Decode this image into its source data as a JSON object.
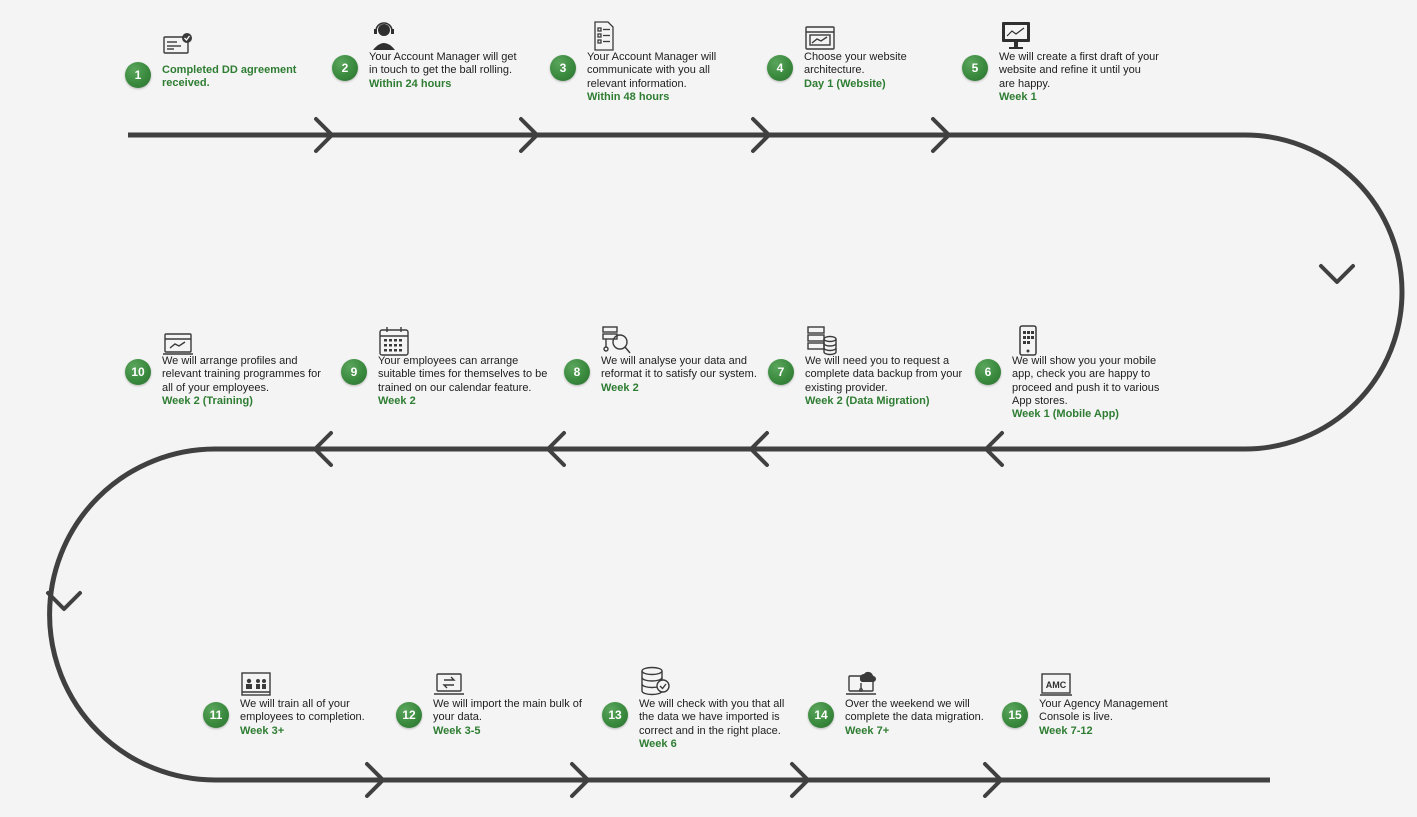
{
  "accent_color": "#2e7d32",
  "path_color": "#404040",
  "steps": [
    {
      "number": "1",
      "description": "Completed DD agreement received.",
      "timing": "",
      "icon": "agreement-card-icon"
    },
    {
      "number": "2",
      "description": "Your Account Manager will get in touch to get the ball rolling.",
      "timing": "Within 24 hours",
      "icon": "account-manager-headset-icon"
    },
    {
      "number": "3",
      "description": "Your Account Manager will communicate with you all relevant information.",
      "timing": "Within 48 hours",
      "icon": "checklist-document-icon"
    },
    {
      "number": "4",
      "description": "Choose your website architecture.",
      "timing": "Day 1 (Website)",
      "icon": "website-browser-icon"
    },
    {
      "number": "5",
      "description": "We will create a first draft of your website and refine it until you are happy.",
      "timing": "Week 1",
      "icon": "desktop-monitor-icon"
    },
    {
      "number": "6",
      "description": "We will show you your mobile app, check you are happy to proceed and push it to various App stores.",
      "timing": "Week 1 (Mobile App)",
      "icon": "mobile-phone-icon"
    },
    {
      "number": "7",
      "description": "We will need you to request a complete data backup from your existing provider.",
      "timing": "Week 2 (Data Migration)",
      "icon": "server-database-icon"
    },
    {
      "number": "8",
      "description": "We will analyse your data and reformat it to satisfy our system.",
      "timing": "Week 2",
      "icon": "data-analysis-magnifier-icon"
    },
    {
      "number": "9",
      "description": "Your employees can arrange suitable times for themselves to be trained on our calendar feature.",
      "timing": "Week 2",
      "icon": "calendar-icon"
    },
    {
      "number": "10",
      "description": "We will arrange profiles and relevant training programmes for all of your employees.",
      "timing": "Week 2 (Training)",
      "icon": "training-profile-screen-icon"
    },
    {
      "number": "11",
      "description": "We will train all of your employees to completion.",
      "timing": "Week 3+",
      "icon": "team-training-board-icon"
    },
    {
      "number": "12",
      "description": "We will import the main bulk of your data.",
      "timing": "Week 3-5",
      "icon": "laptop-transfer-icon"
    },
    {
      "number": "13",
      "description": "We will check with you that all the data we have imported is correct and in the right place.",
      "timing": "Week 6",
      "icon": "database-check-icon"
    },
    {
      "number": "14",
      "description": "Over the weekend we will complete the data migration.",
      "timing": "Week 7+",
      "icon": "cloud-laptop-icon"
    },
    {
      "number": "15",
      "description": "Your Agency Management Console is live.",
      "timing": "Week 7-12",
      "icon": "amc-console-icon",
      "icon_label": "AMC"
    }
  ]
}
